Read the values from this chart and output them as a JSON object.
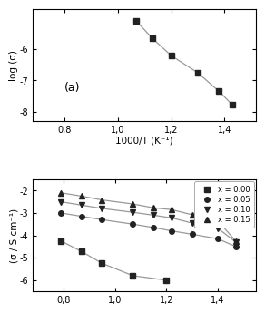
{
  "panel_a": {
    "label": "(a)",
    "x": [
      1.07,
      1.13,
      1.2,
      1.3,
      1.38,
      1.43
    ],
    "y": [
      -5.1,
      -5.65,
      -6.2,
      -6.75,
      -7.35,
      -7.78
    ],
    "xlabel": "1000/T (K⁻¹)",
    "ylabel": "log (σ",
    "xlim": [
      0.68,
      1.52
    ],
    "ylim": [
      -8.3,
      -4.7
    ],
    "yticks": [
      -8,
      -7,
      -6
    ],
    "xticks": [
      0.8,
      1.0,
      1.2,
      1.4
    ],
    "xtick_labels": [
      "0,8",
      "1,0",
      "1,2",
      "1,4"
    ],
    "marker_color": "#222222",
    "line_color": "#999999"
  },
  "panel_b": {
    "ylabel": "(σ / S cm⁻¹)",
    "xlim": [
      0.68,
      1.55
    ],
    "ylim": [
      -6.5,
      -1.5
    ],
    "yticks": [
      -6,
      -5,
      -4,
      -3,
      -2
    ],
    "xticks": [
      0.8,
      1.0,
      1.2,
      1.4
    ],
    "xtick_labels": [
      "0,8",
      "1,0",
      "1,2",
      "1,4"
    ],
    "series": [
      {
        "label": "x = 0.00",
        "x": [
          0.79,
          0.87,
          0.95,
          1.07,
          1.2
        ],
        "y": [
          -4.25,
          -4.72,
          -5.25,
          -5.8,
          -6.0
        ],
        "marker": "s",
        "marker_color": "#222222"
      },
      {
        "label": "x = 0.05",
        "x": [
          0.79,
          0.87,
          0.95,
          1.07,
          1.15,
          1.22,
          1.3,
          1.4,
          1.47
        ],
        "y": [
          -3.0,
          -3.15,
          -3.3,
          -3.5,
          -3.65,
          -3.8,
          -3.95,
          -4.15,
          -4.5
        ],
        "marker": "o",
        "marker_color": "#222222"
      },
      {
        "label": "x = 0.10",
        "x": [
          0.79,
          0.87,
          0.95,
          1.07,
          1.15,
          1.22,
          1.3,
          1.4,
          1.47
        ],
        "y": [
          -2.5,
          -2.65,
          -2.8,
          -2.97,
          -3.1,
          -3.22,
          -3.45,
          -3.68,
          -4.3
        ],
        "marker": "v",
        "marker_color": "#222222"
      },
      {
        "label": "x = 0.15",
        "x": [
          0.79,
          0.87,
          0.95,
          1.07,
          1.15,
          1.22,
          1.3,
          1.4,
          1.47
        ],
        "y": [
          -2.1,
          -2.25,
          -2.42,
          -2.6,
          -2.77,
          -2.85,
          -3.08,
          -3.35,
          -4.25
        ],
        "marker": "^",
        "marker_color": "#222222"
      }
    ],
    "line_color": "#999999"
  },
  "background_color": "#ffffff",
  "marker_size": 4,
  "linewidth": 0.9
}
